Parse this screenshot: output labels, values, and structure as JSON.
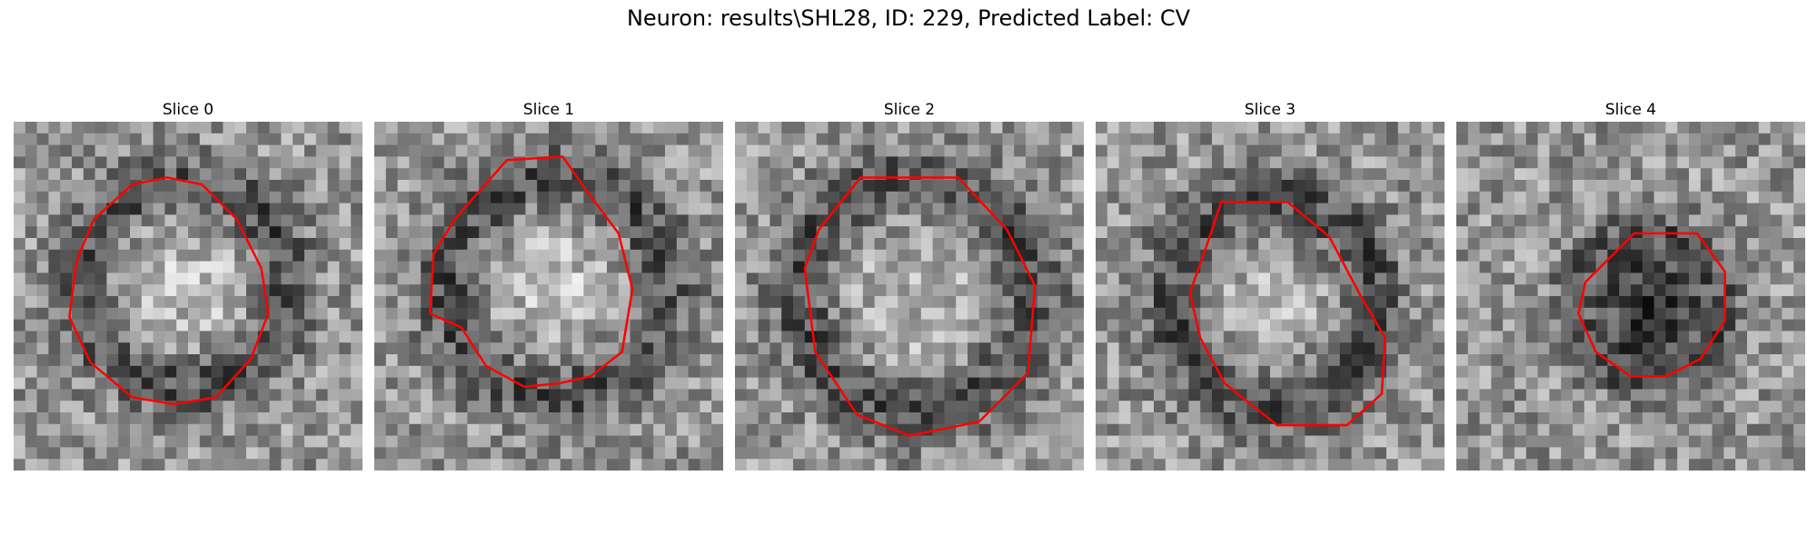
{
  "figure": {
    "title": "Neuron: results\\SHL28, ID: 229, Predicted Label: CV"
  },
  "panels": [
    {
      "title": "Slice 0",
      "contour_color": "#ff0000"
    },
    {
      "title": "Slice 1",
      "contour_color": "#ff0000"
    },
    {
      "title": "Slice 2",
      "contour_color": "#ff0000"
    },
    {
      "title": "Slice 3",
      "contour_color": "#ff0000"
    },
    {
      "title": "Slice 4",
      "contour_color": "#ff0000"
    }
  ]
}
